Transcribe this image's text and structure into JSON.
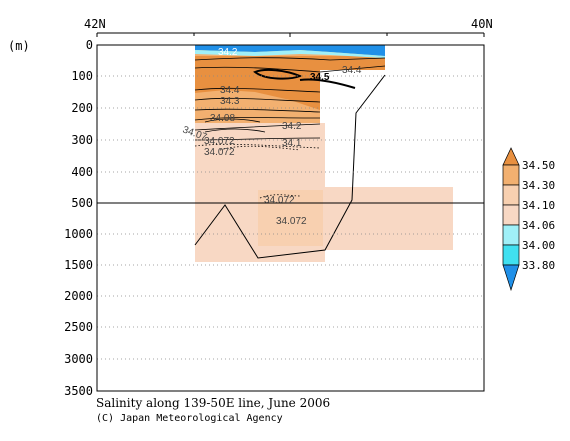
{
  "chart_data": {
    "type": "contour-section",
    "title": "Salinity along 139-50E line, June 2006",
    "credit": "(C) Japan Meteorological Agency",
    "x_axis": {
      "top_labels": [
        "42N",
        "40N"
      ],
      "range_deg_lat": [
        42,
        40
      ]
    },
    "y_axis": {
      "unit_label": "(m)",
      "ticks": [
        0,
        100,
        200,
        300,
        400,
        500,
        1000,
        1500,
        2000,
        2500,
        3000,
        3500
      ],
      "scale": "piecewise: 0-500 m expanded, 500-3500 m compressed",
      "range_m": [
        0,
        3500
      ]
    },
    "colorbar": {
      "levels": [
        "34.50",
        "34.30",
        "34.10",
        "34.06",
        "34.00",
        "33.80"
      ],
      "colors": [
        "#E89040",
        "#F2B070",
        "#F8D0B0",
        "#A0F0F8",
        "#40E0F0",
        "#2090E8"
      ]
    },
    "contour_labels": [
      {
        "text": "34.2",
        "x_lat": 41.45,
        "depth_m": 20
      },
      {
        "text": "34.4",
        "x_lat": 41.1,
        "depth_m": 70
      },
      {
        "text": "34.5",
        "x_lat": 41.25,
        "depth_m": 90
      },
      {
        "text": "34.4",
        "x_lat": 41.6,
        "depth_m": 140
      },
      {
        "text": "34.3",
        "x_lat": 41.6,
        "depth_m": 175
      },
      {
        "text": "34.08",
        "x_lat": 41.65,
        "depth_m": 225
      },
      {
        "text": "34.2",
        "x_lat": 41.3,
        "depth_m": 255
      },
      {
        "text": "34.07",
        "x_lat": 41.7,
        "depth_m": 285
      },
      {
        "text": "34.072",
        "x_lat": 41.6,
        "depth_m": 305
      },
      {
        "text": "34.1",
        "x_lat": 41.3,
        "depth_m": 300
      },
      {
        "text": "34.072",
        "x_lat": 41.6,
        "depth_m": 330
      },
      {
        "text": "34.072",
        "x_lat": 41.5,
        "depth_m": 720
      },
      {
        "text": "34.072",
        "x_lat": 41.3,
        "depth_m": 860
      }
    ]
  }
}
